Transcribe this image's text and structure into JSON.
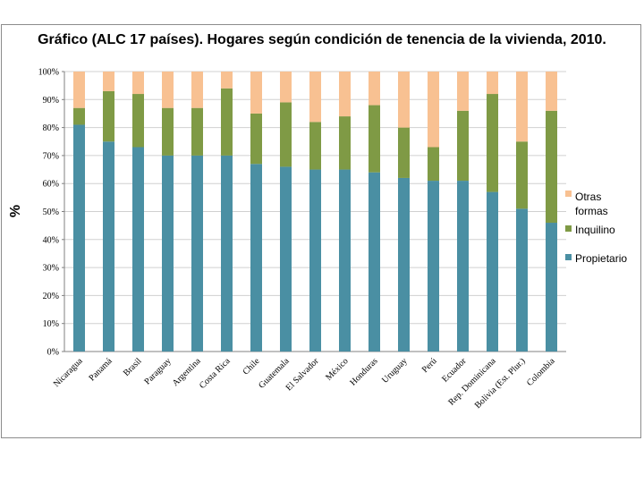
{
  "chart_data": {
    "type": "bar",
    "stacked": true,
    "title": "Gráfico (ALC 17 países). Hogares según condición de tenencia de la vivienda, 2010.",
    "ylabel": "%",
    "xlabel": "",
    "ylim": [
      0,
      100
    ],
    "yticks": [
      "0%",
      "10%",
      "20%",
      "30%",
      "40%",
      "50%",
      "60%",
      "70%",
      "80%",
      "90%",
      "100%"
    ],
    "categories": [
      "Nicaragua",
      "Panamá",
      "Brasil",
      "Paraguay",
      "Argentina",
      "Costa Rica",
      "Chile",
      "Guatemala",
      "El Salvador",
      "México",
      "Honduras",
      "Uruguay",
      "Perú",
      "Ecuador",
      "Rep. Dominicana",
      "Bolivia (Est. Plur.)",
      "Colombia"
    ],
    "series": [
      {
        "name": "Propietario",
        "color": "#4a8fa3",
        "values": [
          81,
          75,
          73,
          70,
          70,
          70,
          67,
          66,
          65,
          65,
          64,
          62,
          61,
          61,
          57,
          51,
          46
        ]
      },
      {
        "name": "Inquilino",
        "color": "#7f9a45",
        "values": [
          6,
          18,
          19,
          17,
          17,
          24,
          18,
          23,
          17,
          19,
          24,
          18,
          12,
          25,
          35,
          24,
          40
        ]
      },
      {
        "name": "Otras formas",
        "color": "#f8c192",
        "values": [
          13,
          7,
          8,
          13,
          13,
          6,
          15,
          11,
          18,
          16,
          12,
          20,
          27,
          14,
          8,
          25,
          14
        ]
      }
    ],
    "legend": {
      "position": "right",
      "entries": [
        "Otras formas",
        "Inquilino",
        "Propietario"
      ]
    },
    "grid": true
  }
}
